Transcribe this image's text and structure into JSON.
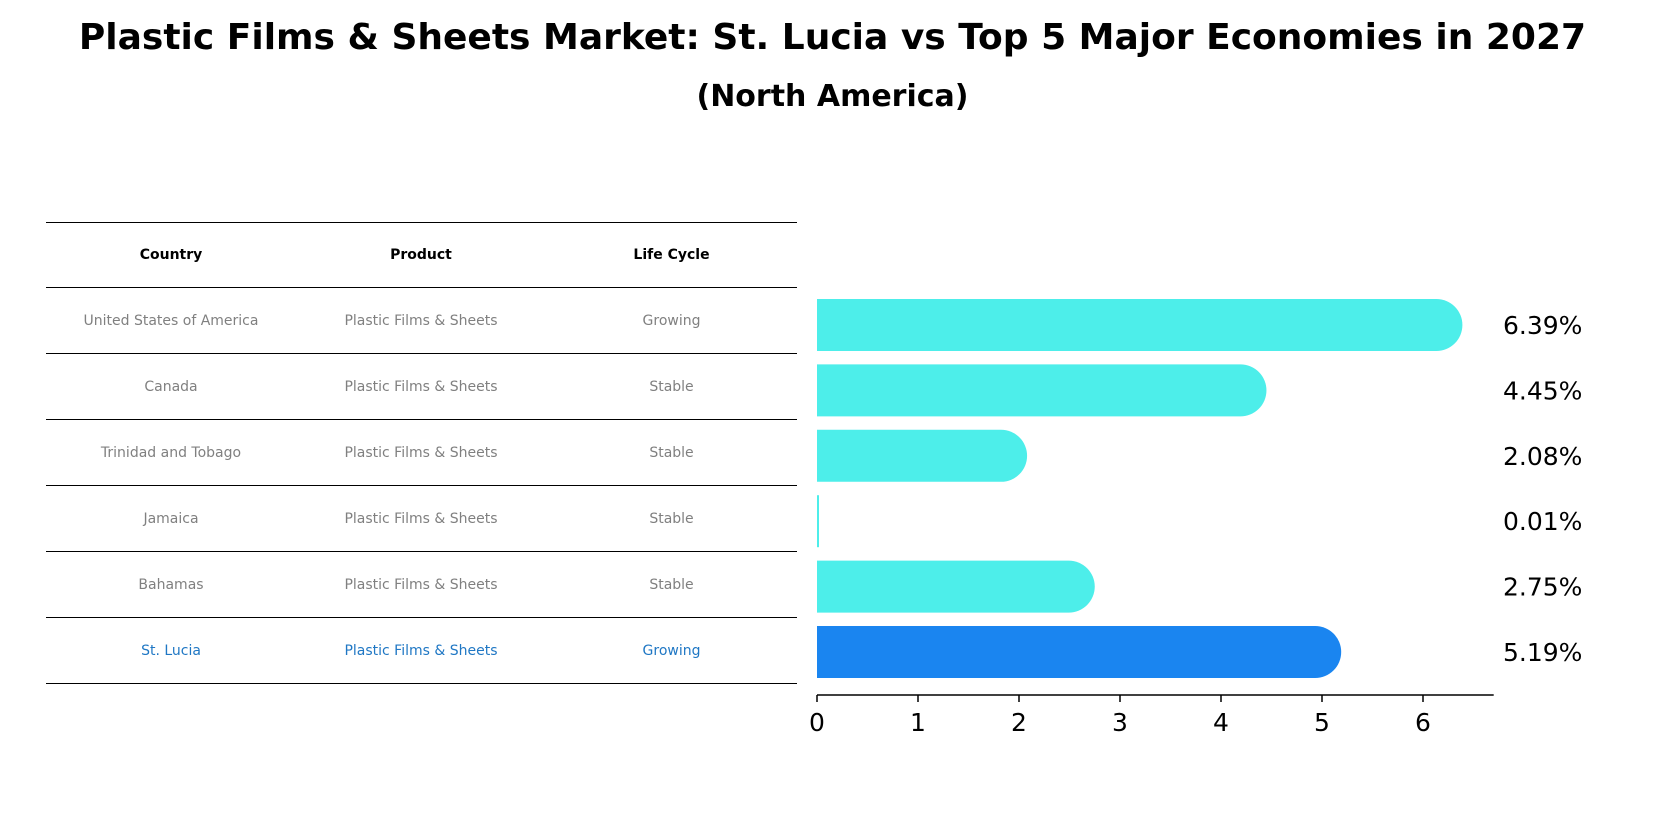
{
  "title": "Plastic Films & Sheets Market: St. Lucia vs Top 5 Major Economies in 2027",
  "subtitle": "(North America)",
  "table": {
    "headers": [
      "Country",
      "Product",
      "Life Cycle"
    ],
    "rows": [
      {
        "country": "United States of America",
        "product": "Plastic Films & Sheets",
        "life_cycle": "Growing"
      },
      {
        "country": "Canada",
        "product": "Plastic Films & Sheets",
        "life_cycle": "Stable"
      },
      {
        "country": "Trinidad and Tobago",
        "product": "Plastic Films & Sheets",
        "life_cycle": "Stable"
      },
      {
        "country": "Jamaica",
        "product": "Plastic Films & Sheets",
        "life_cycle": "Stable"
      },
      {
        "country": "Bahamas",
        "product": "Plastic Films & Sheets",
        "life_cycle": "Stable"
      },
      {
        "country": "St. Lucia",
        "product": "Plastic Films & Sheets",
        "life_cycle": "Growing"
      }
    ]
  },
  "chart_data": {
    "type": "bar",
    "orientation": "horizontal",
    "categories": [
      "United States of America",
      "Canada",
      "Trinidad and Tobago",
      "Jamaica",
      "Bahamas",
      "St. Lucia"
    ],
    "values": [
      6.39,
      4.45,
      2.08,
      0.01,
      2.75,
      5.19
    ],
    "value_labels": [
      "6.39%",
      "4.45%",
      "2.08%",
      "0.01%",
      "2.75%",
      "5.19%"
    ],
    "highlight_index": 5,
    "xlim": [
      0,
      6.7
    ],
    "xticks": [
      0,
      1,
      2,
      3,
      4,
      5,
      6
    ],
    "grid": false,
    "title": "Plastic Films & Sheets Market: St. Lucia vs Top 5 Major Economies in 2027",
    "xlabel": "",
    "ylabel": ""
  },
  "colors": {
    "bar": "#4deeea",
    "highlight_bar": "#1a85f0",
    "highlight_text": "#1f77c4",
    "muted_text": "#808080"
  }
}
